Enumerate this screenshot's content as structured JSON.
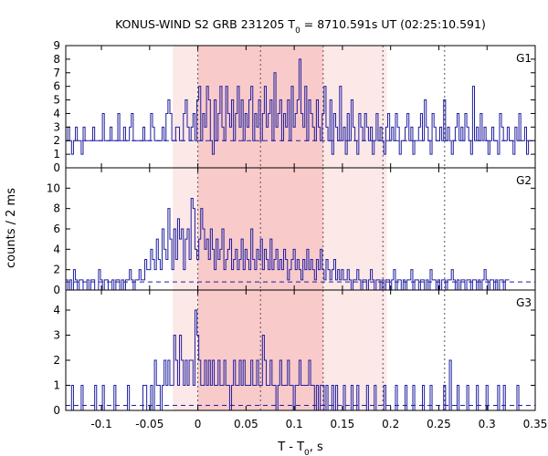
{
  "chart_data": {
    "type": "step",
    "title_main": "KONUS-WIND S2 GRB 231205 T",
    "title_sub": "0",
    "title_rest": " = 8710.591s UT (02:25:10.591)",
    "xlabel_main": "T - T",
    "xlabel_sub": "0",
    "xlabel_rest": ", s",
    "ylabel": "counts / 2 ms",
    "xlim": [
      -0.137,
      0.35
    ],
    "x_ticks": [
      -0.1,
      -0.05,
      0,
      0.05,
      0.1,
      0.15,
      0.2,
      0.25,
      0.3,
      0.35
    ],
    "x_tick_labels": [
      "-0.1",
      "-0.05",
      "0",
      "0.05",
      "0.1",
      "0.15",
      "0.2",
      "0.25",
      "0.3",
      "0.35"
    ],
    "bin_width": 0.002,
    "shaded_outer": [
      -0.026,
      0.196
    ],
    "shaded_inner": [
      0.0,
      0.13
    ],
    "vlines": [
      0.0,
      0.065,
      0.13,
      0.192,
      0.256
    ],
    "colors": {
      "line": "#1f1fa0",
      "shade_outer": "#fde8e8",
      "shade_inner": "#f9caca",
      "vline": "#555555"
    },
    "panels": [
      {
        "name": "G1",
        "ylim": [
          0,
          9
        ],
        "yticks": [
          0,
          1,
          2,
          3,
          4,
          5,
          6,
          7,
          8,
          9
        ],
        "ytick_labels": [
          "0",
          "1",
          "2",
          "3",
          "4",
          "5",
          "6",
          "7",
          "8",
          "9"
        ],
        "background": 2.0,
        "counts": [
          2,
          3,
          2,
          1,
          2,
          3,
          2,
          2,
          1,
          3,
          2,
          2,
          2,
          2,
          3,
          2,
          2,
          2,
          2,
          4,
          2,
          2,
          2,
          3,
          2,
          2,
          2,
          4,
          2,
          2,
          3,
          2,
          2,
          3,
          4,
          2,
          2,
          2,
          2,
          2,
          3,
          2,
          2,
          2,
          4,
          3,
          2,
          2,
          2,
          2,
          3,
          2,
          4,
          5,
          4,
          2,
          2,
          3,
          3,
          2,
          2,
          4,
          5,
          3,
          2,
          3,
          4,
          2,
          5,
          6,
          2,
          4,
          3,
          6,
          5,
          2,
          1,
          5,
          2,
          4,
          6,
          3,
          2,
          6,
          4,
          3,
          5,
          2,
          4,
          6,
          3,
          5,
          2,
          4,
          3,
          5,
          6,
          2,
          4,
          3,
          5,
          2,
          4,
          6,
          3,
          4,
          5,
          2,
          7,
          3,
          4,
          5,
          2,
          4,
          3,
          5,
          2,
          6,
          3,
          4,
          5,
          8,
          4,
          3,
          6,
          2,
          5,
          4,
          3,
          2,
          5,
          3,
          2,
          4,
          6,
          3,
          2,
          5,
          1,
          4,
          3,
          2,
          6,
          2,
          3,
          1,
          4,
          2,
          5,
          3,
          2,
          1,
          4,
          3,
          2,
          4,
          3,
          2,
          3,
          1,
          2,
          4,
          2,
          3,
          2,
          1,
          3,
          4,
          2,
          3,
          2,
          4,
          3,
          1,
          2,
          2,
          3,
          4,
          2,
          3,
          1,
          2,
          2,
          3,
          4,
          2,
          5,
          3,
          2,
          1,
          4,
          3,
          2,
          2,
          3,
          2,
          5,
          2,
          3,
          2,
          1,
          2,
          3,
          4,
          2,
          3,
          2,
          4,
          3,
          2,
          1,
          6,
          2,
          3,
          2,
          4,
          2,
          3,
          2,
          1,
          2,
          3,
          2,
          2,
          1,
          4,
          3,
          2,
          2,
          3,
          2,
          2,
          1,
          3,
          2,
          4,
          2,
          2,
          3,
          1,
          2,
          2
        ]
      },
      {
        "name": "G2",
        "ylim": [
          0,
          12
        ],
        "yticks": [
          0,
          2,
          4,
          6,
          8,
          10
        ],
        "ytick_labels": [
          "0",
          "2",
          "4",
          "6",
          "8",
          "10"
        ],
        "background": 0.8,
        "counts": [
          1,
          0,
          1,
          0,
          2,
          1,
          0,
          1,
          1,
          0,
          0,
          1,
          0,
          1,
          1,
          0,
          0,
          2,
          1,
          0,
          1,
          1,
          0,
          0,
          1,
          0,
          1,
          1,
          0,
          1,
          0,
          1,
          1,
          2,
          1,
          0,
          1,
          1,
          2,
          1,
          1,
          3,
          2,
          2,
          4,
          3,
          2,
          5,
          3,
          2,
          6,
          4,
          3,
          8,
          5,
          2,
          6,
          3,
          7,
          5,
          6,
          2,
          5,
          6,
          3,
          9,
          8,
          4,
          3,
          5,
          8,
          6,
          4,
          5,
          3,
          6,
          4,
          2,
          5,
          3,
          4,
          6,
          2,
          3,
          4,
          5,
          2,
          3,
          4,
          2,
          3,
          5,
          2,
          4,
          3,
          2,
          6,
          3,
          2,
          4,
          3,
          5,
          2,
          4,
          3,
          2,
          5,
          2,
          3,
          4,
          2,
          3,
          2,
          4,
          3,
          1,
          2,
          3,
          4,
          2,
          3,
          2,
          1,
          3,
          2,
          4,
          2,
          3,
          2,
          1,
          3,
          2,
          4,
          2,
          1,
          3,
          2,
          1,
          2,
          3,
          1,
          2,
          1,
          2,
          1,
          1,
          2,
          1,
          0,
          1,
          1,
          2,
          1,
          0,
          1,
          1,
          0,
          1,
          2,
          1,
          0,
          1,
          1,
          0,
          1,
          0,
          1,
          1,
          0,
          1,
          2,
          0,
          1,
          1,
          0,
          1,
          0,
          1,
          1,
          2,
          0,
          1,
          1,
          0,
          1,
          1,
          0,
          1,
          0,
          2,
          1,
          1,
          0,
          1,
          0,
          1,
          1,
          0,
          1,
          1,
          2,
          1,
          0,
          1,
          0,
          1,
          1,
          0,
          1,
          1,
          0,
          1,
          1,
          0,
          1,
          0,
          1,
          2,
          1,
          0,
          1,
          1,
          0,
          1,
          0,
          1,
          1,
          0,
          1,
          1
        ]
      },
      {
        "name": "G3",
        "ylim": [
          0,
          4.8
        ],
        "yticks": [
          0,
          1,
          2,
          3,
          4
        ],
        "ytick_labels": [
          "0",
          "1",
          "2",
          "3",
          "4"
        ],
        "background": 0.2,
        "counts": [
          0,
          0,
          0,
          1,
          0,
          0,
          0,
          0,
          1,
          0,
          0,
          0,
          0,
          0,
          0,
          1,
          0,
          0,
          0,
          1,
          0,
          0,
          0,
          0,
          0,
          1,
          0,
          0,
          0,
          0,
          0,
          0,
          1,
          0,
          0,
          0,
          0,
          0,
          0,
          0,
          1,
          1,
          0,
          0,
          1,
          0,
          2,
          1,
          1,
          0,
          1,
          2,
          1,
          2,
          1,
          1,
          3,
          2,
          1,
          3,
          2,
          1,
          2,
          1,
          2,
          2,
          1,
          4,
          3,
          2,
          1,
          1,
          2,
          1,
          2,
          1,
          2,
          1,
          1,
          2,
          1,
          1,
          2,
          1,
          1,
          0,
          1,
          2,
          1,
          1,
          2,
          1,
          2,
          1,
          1,
          1,
          2,
          1,
          1,
          2,
          1,
          1,
          3,
          2,
          1,
          1,
          2,
          1,
          1,
          0,
          1,
          2,
          1,
          1,
          1,
          2,
          1,
          1,
          0,
          1,
          1,
          2,
          1,
          1,
          1,
          1,
          2,
          1,
          1,
          0,
          1,
          0,
          1,
          1,
          0,
          1,
          0,
          0,
          1,
          0,
          1,
          0,
          0,
          0,
          1,
          0,
          0,
          0,
          1,
          0,
          0,
          1,
          0,
          0,
          0,
          0,
          1,
          0,
          0,
          0,
          1,
          0,
          0,
          0,
          0,
          1,
          0,
          0,
          0,
          0,
          0,
          1,
          0,
          0,
          0,
          0,
          1,
          0,
          0,
          0,
          1,
          0,
          0,
          0,
          0,
          1,
          0,
          0,
          0,
          1,
          0,
          0,
          0,
          0,
          0,
          0,
          1,
          0,
          0,
          2,
          0,
          0,
          0,
          1,
          0,
          0,
          0,
          0,
          1,
          0,
          0,
          0,
          0,
          1,
          0,
          0,
          0,
          0,
          1,
          0,
          0,
          0,
          0,
          0,
          1,
          0,
          0,
          1,
          0,
          0,
          0,
          0,
          0,
          0,
          1,
          0,
          0,
          0
        ]
      }
    ]
  }
}
